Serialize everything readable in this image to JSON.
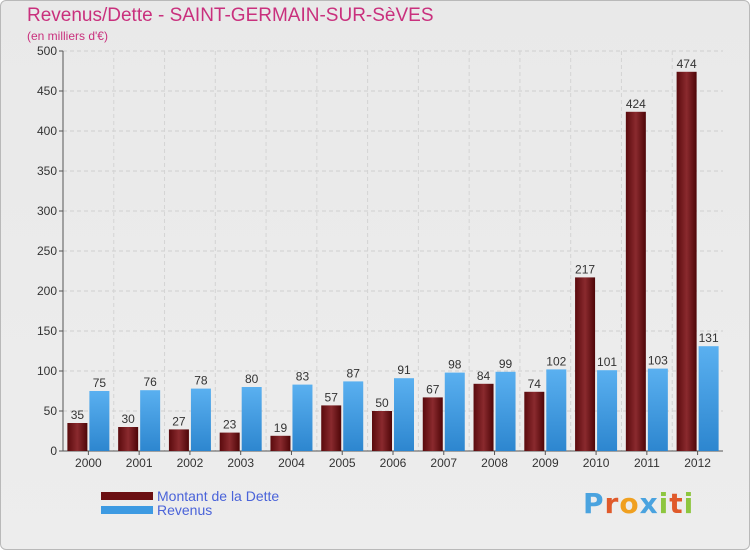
{
  "header": {
    "title": "Revenus/Dette - SAINT-GERMAIN-SUR-SèVES",
    "subtitle": "(en milliers d'€)"
  },
  "legend": {
    "placement": "bottom-left",
    "items": [
      {
        "label": "Montant de la Dette",
        "color": "#6b0f12"
      },
      {
        "label": "Revenus",
        "color": "#3d9ae2"
      }
    ]
  },
  "logo": {
    "text": "Proxiti",
    "letter_colors": [
      "#4aa3df",
      "#e05a2b",
      "#f0a020",
      "#4aa3df",
      "#8dc63f",
      "#e05a2b",
      "#8dc63f"
    ]
  },
  "chart_data": {
    "type": "bar",
    "categories": [
      "2000",
      "2001",
      "2002",
      "2003",
      "2004",
      "2005",
      "2006",
      "2007",
      "2008",
      "2009",
      "2010",
      "2011",
      "2012"
    ],
    "series": [
      {
        "name": "Montant de la Dette",
        "color": "#6b0f12",
        "values": [
          35,
          30,
          27,
          23,
          19,
          57,
          50,
          67,
          84,
          74,
          217,
          424,
          474
        ]
      },
      {
        "name": "Revenus",
        "color": "#3d9ae2",
        "values": [
          75,
          76,
          78,
          80,
          83,
          87,
          91,
          98,
          99,
          102,
          101,
          103,
          131
        ]
      }
    ],
    "ylim": [
      0,
      500
    ],
    "yticks": [
      0,
      50,
      100,
      150,
      200,
      250,
      300,
      350,
      400,
      450,
      500
    ],
    "grid": true,
    "data_labels": true
  }
}
